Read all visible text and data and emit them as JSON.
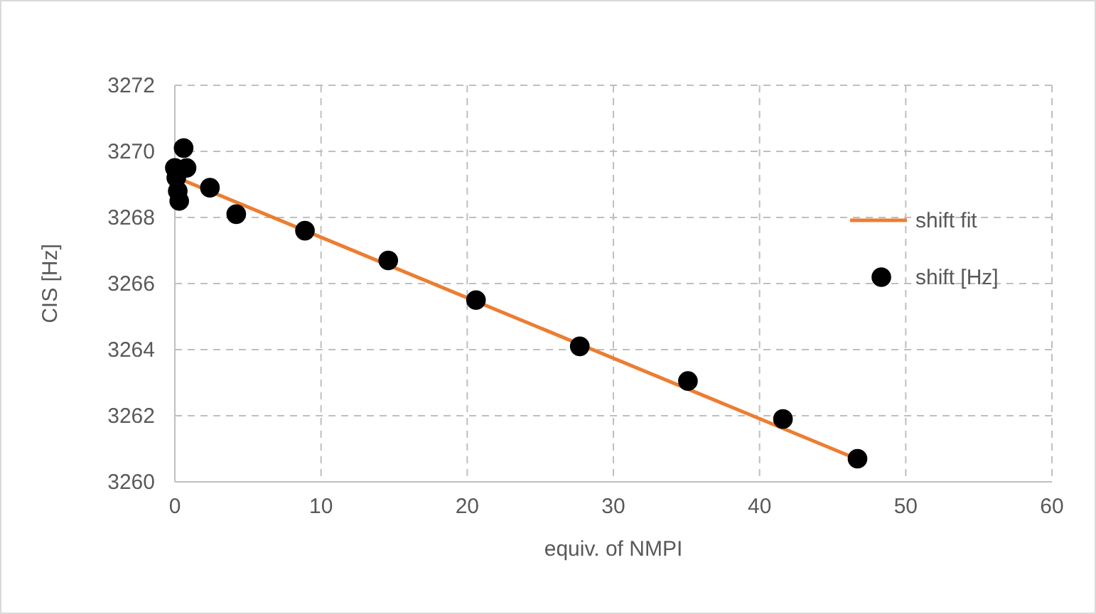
{
  "chart_data": {
    "type": "scatter",
    "xlabel": "equiv. of NMPI",
    "ylabel": "CIS [Hz]",
    "xlim": [
      0,
      60
    ],
    "xticks": [
      0,
      10,
      20,
      30,
      40,
      50,
      60
    ],
    "ylim": [
      3260,
      3272
    ],
    "yticks": [
      3260,
      3262,
      3264,
      3266,
      3268,
      3270,
      3272
    ],
    "grid": true,
    "legend": "right",
    "series": [
      {
        "name": "shift fit",
        "type": "line",
        "color": "#ed7d31",
        "line_style": "solid",
        "x": [
          0,
          47
        ],
        "values": [
          3269.23,
          3260.63
        ]
      },
      {
        "name": "shift [Hz]",
        "color": "#000000",
        "marker": "circle",
        "x": [
          0,
          0.1,
          0.2,
          0.3,
          0.6,
          0.8,
          2.4,
          4.2,
          8.9,
          14.6,
          20.6,
          27.7,
          35.1,
          41.6,
          46.7
        ],
        "values": [
          3269.5,
          3269.2,
          3268.8,
          3268.5,
          3270.1,
          3269.5,
          3268.9,
          3268.1,
          3267.6,
          3266.7,
          3265.5,
          3264.1,
          3263.05,
          3261.9,
          3260.7
        ]
      }
    ]
  }
}
